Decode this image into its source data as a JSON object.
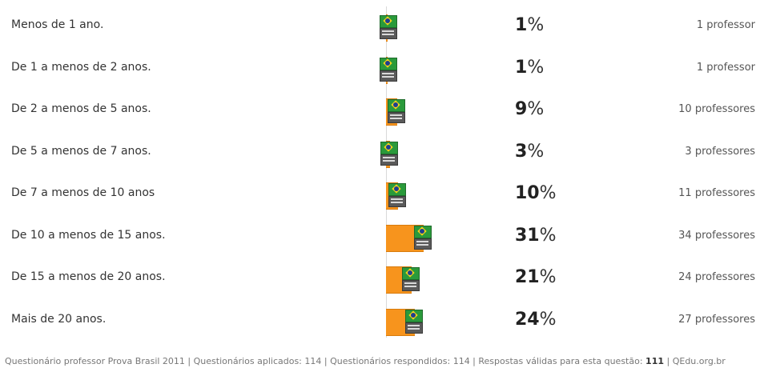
{
  "chart_data": {
    "type": "bar",
    "orientation": "horizontal",
    "categories": [
      "Menos de 1 ano.",
      "De 1 a menos de 2 anos.",
      "De 2 a menos de 5 anos.",
      "De 5 a menos de 7 anos.",
      "De 7 a menos de 10 anos",
      "De 10 a menos de 15 anos.",
      "De 15 a menos de 20 anos.",
      "Mais de 20 anos."
    ],
    "values": [
      1,
      1,
      9,
      3,
      10,
      31,
      21,
      24
    ],
    "percent_labels": [
      "1",
      "1",
      "9",
      "3",
      "10",
      "31",
      "21",
      "24"
    ],
    "percent_symbol": "%",
    "count_labels": [
      "1 professor",
      "1 professor",
      "10 professores",
      "3 professores",
      "11 professores",
      "34 professores",
      "24 professores",
      "27 professores"
    ],
    "bar_color": "#f7941d",
    "xlim": [
      0,
      100
    ],
    "grid": false,
    "legend": "none"
  },
  "footer": {
    "text1": "Questionário professor Prova Brasil 2011 | Questionários aplicados: 114 | Questionários respondidos: 114 | Respostas válidas para esta questão: ",
    "valid_count": "111",
    "text2": " | QEdu.org.br"
  }
}
